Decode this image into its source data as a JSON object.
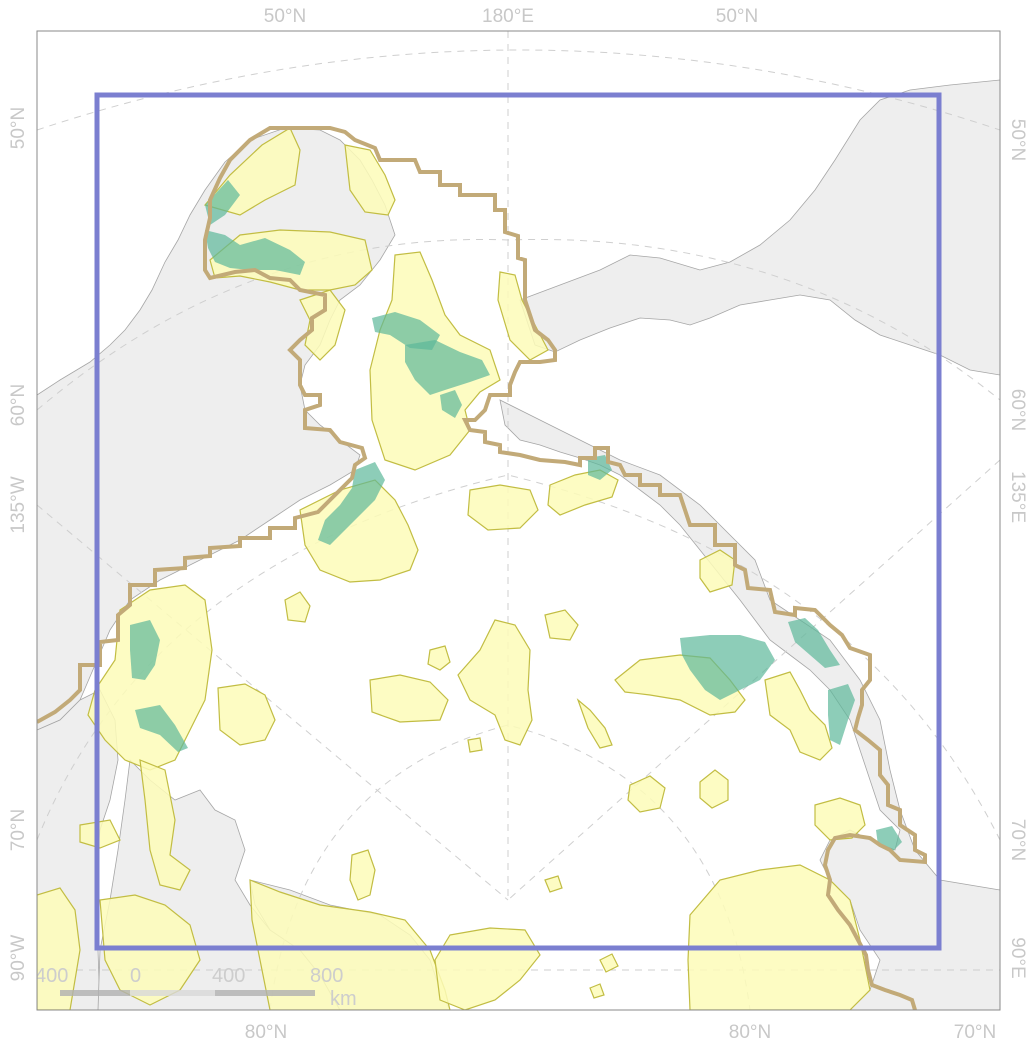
{
  "graticule_labels": {
    "top": [
      "50°N",
      "180°E",
      "50°N"
    ],
    "bottom": [
      "80°N",
      "80°N",
      "70°N"
    ],
    "left": [
      "50°N",
      "60°N",
      "135°W",
      "70°N",
      "90°W"
    ],
    "right": [
      "50°N",
      "60°N",
      "135°E",
      "70°N",
      "90°E"
    ]
  },
  "scale_bar": {
    "ticks": [
      "400",
      "0",
      "400",
      "800"
    ],
    "unit": "km"
  },
  "colors": {
    "land": "#eeeeee",
    "coastline": "#a6a6a6",
    "graticule": "#cfcfcf",
    "habitat_fill": "#fdfbb8",
    "habitat_outline": "#c2bd43",
    "hotspot": "#5cb89a",
    "boundary": "#c2aa78",
    "extent_box": "#7b7fd0"
  }
}
